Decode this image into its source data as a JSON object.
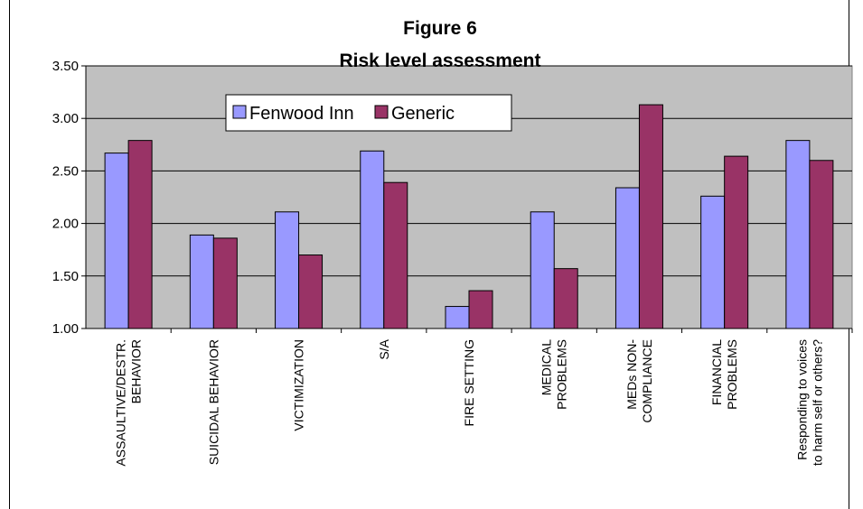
{
  "chart_data": {
    "type": "bar",
    "title": "Figure 6",
    "subtitle": "Risk level assessment",
    "ylim": [
      1.0,
      3.5
    ],
    "yticks": [
      "1.00",
      "1.50",
      "2.00",
      "2.50",
      "3.00",
      "3.50"
    ],
    "ytick_values": [
      1.0,
      1.5,
      2.0,
      2.5,
      3.0,
      3.5
    ],
    "grid": true,
    "legend_position": "top-center",
    "categories": [
      [
        "ASSAULTIVE/DESTR.",
        "BEHAVIOR"
      ],
      [
        "SUICIDAL BEHAVIOR"
      ],
      [
        "VICTIMIZATION"
      ],
      [
        "S/A"
      ],
      [
        "FIRE SETTING"
      ],
      [
        "MEDICAL",
        "PROBLEMS"
      ],
      [
        "MEDs NON-",
        "COMPLIANCE"
      ],
      [
        "FINANCIAL",
        "PROBLEMS"
      ],
      [
        "Responding to voices",
        "to harm self or others?"
      ]
    ],
    "series": [
      {
        "name": "Fenwood Inn",
        "color": "#9999FF",
        "values": [
          2.67,
          1.89,
          2.11,
          2.69,
          1.21,
          2.11,
          2.34,
          2.26,
          2.79
        ]
      },
      {
        "name": "Generic",
        "color": "#993366",
        "values": [
          2.79,
          1.86,
          1.7,
          2.39,
          1.36,
          1.57,
          3.13,
          2.64,
          2.6
        ]
      }
    ],
    "plot_background": "#C0C0C0"
  }
}
